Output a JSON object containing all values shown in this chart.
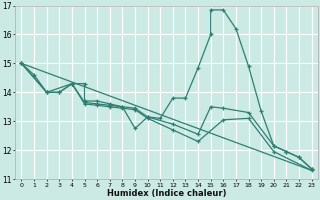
{
  "xlabel": "Humidex (Indice chaleur)",
  "bg_color": "#cceae4",
  "grid_color": "#ffffff",
  "line_color": "#2e7f72",
  "xlim": [
    -0.5,
    23.5
  ],
  "ylim": [
    11,
    17
  ],
  "yticks": [
    11,
    12,
    13,
    14,
    15,
    16,
    17
  ],
  "xticks": [
    0,
    1,
    2,
    3,
    4,
    5,
    6,
    7,
    8,
    9,
    10,
    11,
    12,
    13,
    14,
    15,
    16,
    17,
    18,
    19,
    20,
    21,
    22,
    23
  ],
  "series1": [
    [
      0,
      15.0
    ],
    [
      1,
      14.6
    ],
    [
      2,
      14.0
    ],
    [
      3,
      14.0
    ],
    [
      4,
      14.3
    ],
    [
      5,
      14.3
    ],
    [
      5,
      13.7
    ],
    [
      6,
      13.7
    ],
    [
      7,
      13.6
    ],
    [
      8,
      13.5
    ],
    [
      9,
      12.75
    ],
    [
      10,
      13.15
    ],
    [
      11,
      13.1
    ],
    [
      12,
      13.8
    ],
    [
      13,
      13.8
    ],
    [
      14,
      14.85
    ],
    [
      15,
      16.0
    ],
    [
      15,
      16.85
    ],
    [
      16,
      16.85
    ],
    [
      17,
      16.2
    ],
    [
      18,
      14.9
    ],
    [
      19,
      13.35
    ],
    [
      20,
      12.15
    ],
    [
      21,
      11.95
    ],
    [
      22,
      11.75
    ],
    [
      23,
      11.35
    ]
  ],
  "series2": [
    [
      0,
      15.0
    ],
    [
      2,
      14.0
    ],
    [
      3,
      14.0
    ],
    [
      4,
      14.3
    ],
    [
      5,
      13.65
    ],
    [
      6,
      13.6
    ],
    [
      7,
      13.55
    ],
    [
      8,
      13.5
    ],
    [
      9,
      13.45
    ],
    [
      10,
      13.15
    ],
    [
      12,
      12.9
    ],
    [
      14,
      12.55
    ],
    [
      15,
      13.5
    ],
    [
      16,
      13.45
    ],
    [
      18,
      13.3
    ],
    [
      20,
      12.15
    ],
    [
      21,
      11.95
    ],
    [
      22,
      11.75
    ],
    [
      23,
      11.35
    ]
  ],
  "series3": [
    [
      0,
      15.0
    ],
    [
      2,
      14.0
    ],
    [
      4,
      14.3
    ],
    [
      5,
      13.6
    ],
    [
      6,
      13.55
    ],
    [
      7,
      13.5
    ],
    [
      8,
      13.45
    ],
    [
      9,
      13.4
    ],
    [
      10,
      13.1
    ],
    [
      12,
      12.7
    ],
    [
      14,
      12.3
    ],
    [
      16,
      13.05
    ],
    [
      18,
      13.1
    ],
    [
      20,
      11.95
    ],
    [
      23,
      11.3
    ]
  ],
  "series4": [
    [
      0,
      15.0
    ],
    [
      23,
      11.3
    ]
  ]
}
